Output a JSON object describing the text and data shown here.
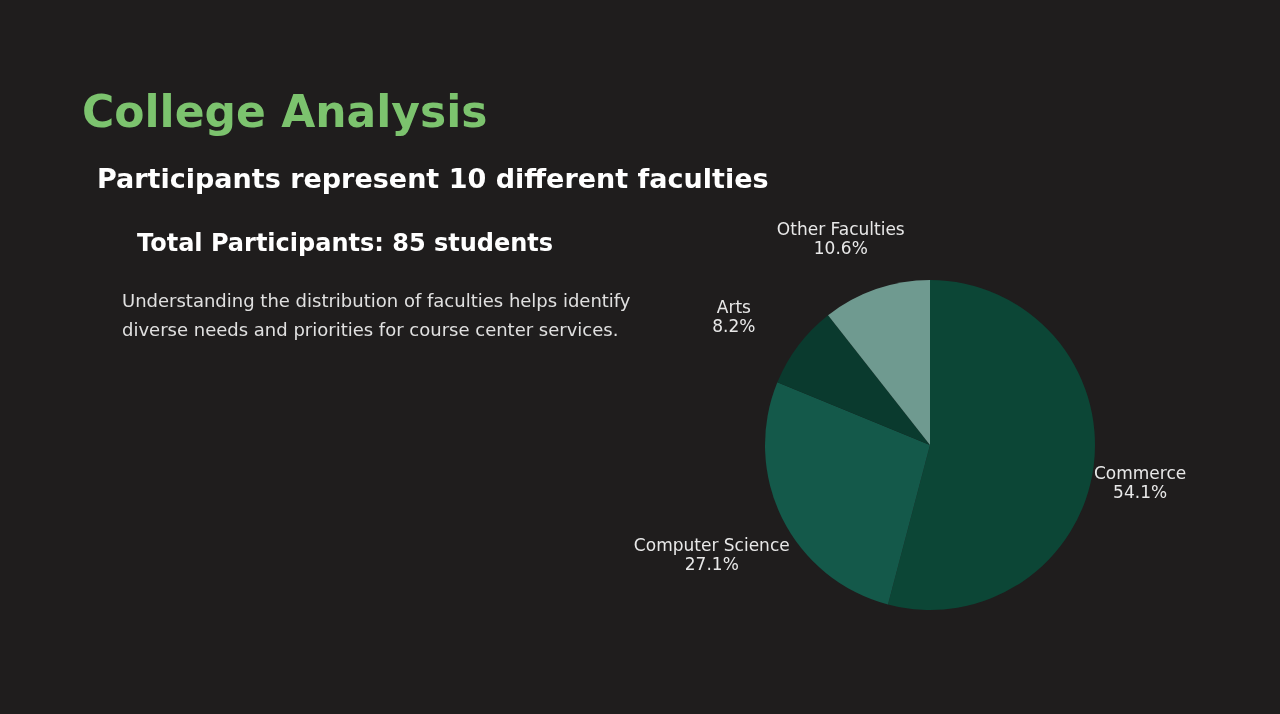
{
  "chart_data": {
    "type": "pie",
    "title": "College Analysis",
    "subtitle": "Participants represent 10 different faculties",
    "annotations": [
      "Total Participants: 85 students",
      "Understanding the distribution of faculties helps identify\ndiverse needs and priorities for course center services."
    ],
    "categories": [
      "Commerce",
      "Computer Science",
      "Arts",
      "Other Faculties"
    ],
    "values": [
      54.1,
      27.1,
      8.2,
      10.6
    ],
    "value_labels": [
      "54.1%",
      "27.1%",
      "8.2%",
      "10.6%"
    ],
    "colors": [
      "#0c4636",
      "#14594a",
      "#0a3a2e",
      "#6f9a90"
    ]
  }
}
